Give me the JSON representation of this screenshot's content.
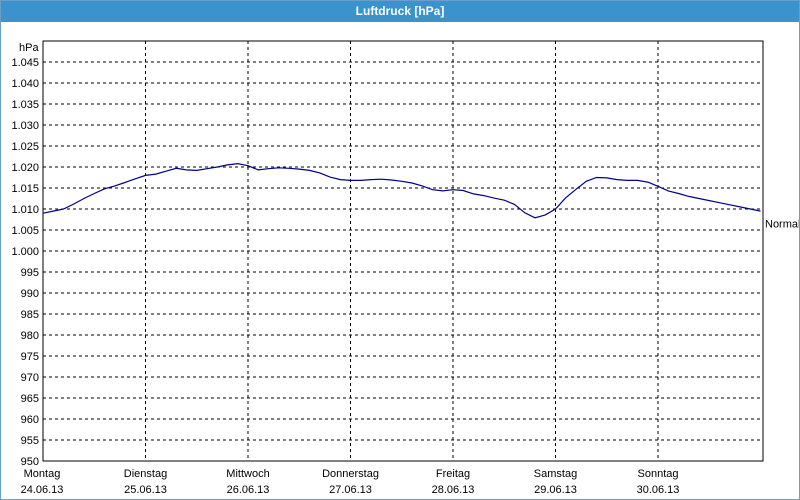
{
  "window": {
    "title": "Luftdruck [hPa]"
  },
  "chart_data": {
    "type": "line",
    "title": "Luftdruck [hPa]",
    "ylabel": "hPa",
    "xlabel": "",
    "ylim": [
      950,
      1050
    ],
    "y_ticks": [
      1045,
      1040,
      1035,
      1030,
      1025,
      1020,
      1015,
      1010,
      1005,
      1000,
      995,
      990,
      985,
      980,
      975,
      970,
      965,
      960,
      955,
      950
    ],
    "y_tick_labels": [
      "1.045",
      "1.040",
      "1.035",
      "1.030",
      "1.025",
      "1.020",
      "1.015",
      "1.010",
      "1.005",
      "1.000",
      "995",
      "990",
      "985",
      "980",
      "975",
      "970",
      "965",
      "960",
      "955",
      "950"
    ],
    "x_range_days": [
      0,
      7
    ],
    "day_labels": [
      {
        "day": "Montag",
        "date": "24.06.13"
      },
      {
        "day": "Dienstag",
        "date": "25.06.13"
      },
      {
        "day": "Mittwoch",
        "date": "26.06.13"
      },
      {
        "day": "Donnerstag",
        "date": "27.06.13"
      },
      {
        "day": "Freitag",
        "date": "28.06.13"
      },
      {
        "day": "Samstag",
        "date": "29.06.13"
      },
      {
        "day": "Sonntag",
        "date": "30.06.13"
      }
    ],
    "reference_line": {
      "label": "Normal",
      "value": 1006.5
    },
    "grid": true,
    "series_color": "#00008b",
    "series": [
      {
        "x": [
          0,
          0.1,
          0.2,
          0.3,
          0.4,
          0.5,
          0.6,
          0.7,
          0.8,
          0.9,
          1.0,
          1.1,
          1.2,
          1.3,
          1.4,
          1.5,
          1.6,
          1.7,
          1.8,
          1.9,
          2.0,
          2.1,
          2.2,
          2.3,
          2.4,
          2.5,
          2.6,
          2.7,
          2.8,
          2.9,
          3.0,
          3.1,
          3.2,
          3.3,
          3.4,
          3.5,
          3.6,
          3.7,
          3.8,
          3.9,
          4.0,
          4.1,
          4.2,
          4.3,
          4.4,
          4.5,
          4.6,
          4.7,
          4.8,
          4.9,
          5.0,
          5.1,
          5.2,
          5.3,
          5.4,
          5.5,
          5.6,
          5.7,
          5.8,
          5.9,
          6.0,
          6.1,
          6.2,
          6.3,
          6.4,
          6.5,
          6.6,
          6.7,
          6.8,
          6.9,
          7.0
        ],
        "values": [
          1009.0,
          1009.5,
          1010.0,
          1011.2,
          1012.5,
          1013.7,
          1014.8,
          1015.5,
          1016.3,
          1017.2,
          1018.0,
          1018.3,
          1019.0,
          1019.7,
          1019.3,
          1019.2,
          1019.6,
          1020.0,
          1020.5,
          1020.8,
          1020.3,
          1019.3,
          1019.6,
          1019.8,
          1019.7,
          1019.5,
          1019.2,
          1018.6,
          1017.6,
          1017.0,
          1016.8,
          1016.8,
          1017.0,
          1017.1,
          1016.9,
          1016.6,
          1016.2,
          1015.5,
          1014.6,
          1014.3,
          1014.6,
          1014.4,
          1013.6,
          1013.2,
          1012.6,
          1012.1,
          1011.1,
          1009.1,
          1007.9,
          1008.6,
          1010.0,
          1012.7,
          1014.7,
          1016.6,
          1017.5,
          1017.4,
          1017.0,
          1016.8,
          1016.8,
          1016.4,
          1015.4,
          1014.3,
          1013.7,
          1013.0,
          1012.5,
          1012.0,
          1011.5,
          1011.0,
          1010.5,
          1010.0,
          1009.5
        ]
      }
    ]
  }
}
